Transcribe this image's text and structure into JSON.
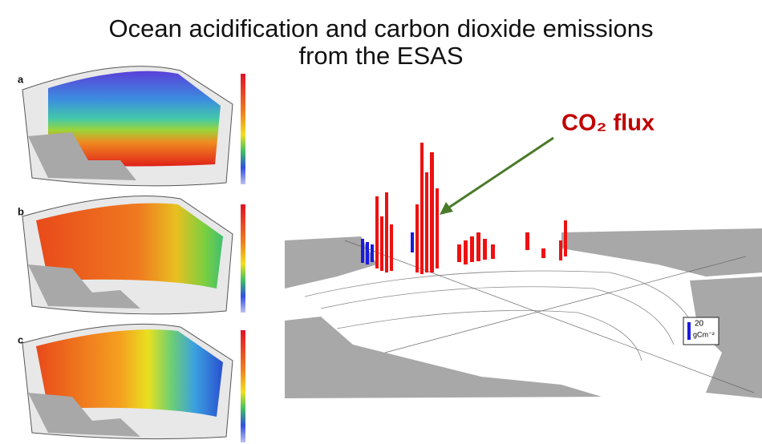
{
  "slide": {
    "title_lines": [
      "Ocean acidification and carbon dioxide emissions",
      "from the ESAS"
    ],
    "panels": [
      {
        "label": "a"
      },
      {
        "label": "b"
      },
      {
        "label": "c"
      }
    ],
    "annotation": "CO₂ flux",
    "legend": {
      "value": "20",
      "unit": "gCm⁻²"
    }
  }
}
